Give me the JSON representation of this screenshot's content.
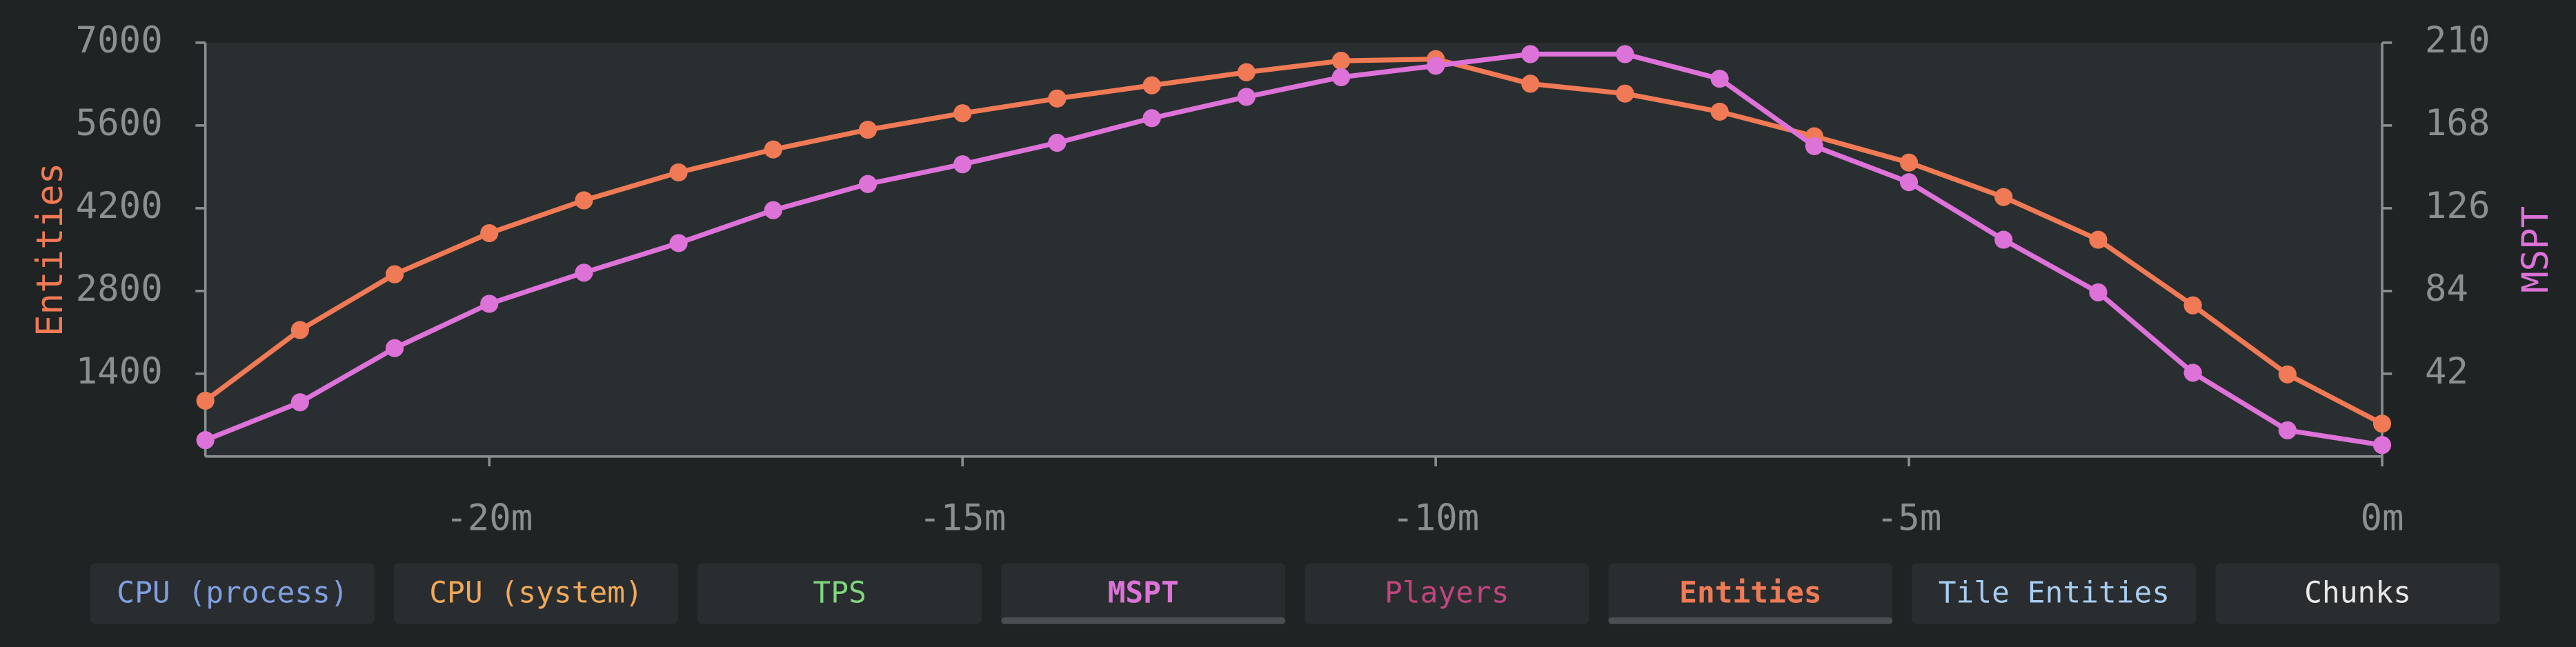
{
  "chart_data": {
    "type": "line",
    "ylabel": "Entities",
    "y2label": "MSPT",
    "x": [
      -23,
      -22,
      -21,
      -20,
      -19,
      -18,
      -17,
      -16,
      -15,
      -14,
      -13,
      -12,
      -11,
      -10,
      -9,
      -8,
      -7,
      -6,
      -5,
      -4,
      -3,
      -2,
      -1,
      0
    ],
    "xlim": [
      -23,
      0
    ],
    "xticks": [
      {
        "value": -20,
        "label": "-20m"
      },
      {
        "value": -15,
        "label": "-15m"
      },
      {
        "value": -10,
        "label": "-10m"
      },
      {
        "value": -5,
        "label": "-5m"
      },
      {
        "value": 0,
        "label": "0m"
      }
    ],
    "ylim": [
      0,
      7000
    ],
    "yticks": [
      1400,
      2800,
      4200,
      5600,
      7000
    ],
    "y2lim": [
      0,
      210
    ],
    "y2ticks": [
      42,
      84,
      126,
      168,
      210
    ],
    "series": [
      {
        "color": "#f07a55",
        "values": [
          944,
          2139,
          3083,
          3778,
          4333,
          4806,
          5194,
          5528,
          5806,
          6056,
          6278,
          6500,
          6694,
          6722,
          6306,
          6139,
          5833,
          5417,
          4972,
          4389,
          3667,
          2556,
          1389,
          556
        ]
      },
      {
        "color": "#dd72d8",
        "axis": "y2",
        "values": [
          8.3,
          27.5,
          55,
          77.5,
          93.3,
          108.3,
          125,
          138.3,
          148.3,
          159.2,
          171.7,
          182.5,
          192.5,
          198.3,
          204.2,
          204.2,
          191.7,
          157.5,
          139.2,
          110,
          83.3,
          42.5,
          13.3,
          5.8
        ]
      }
    ]
  },
  "toggles": [
    {
      "label": "CPU (process)",
      "color": "#7f9fe0",
      "active": false
    },
    {
      "label": "CPU (system)",
      "color": "#f0a85a",
      "active": false
    },
    {
      "label": "TPS",
      "color": "#7fd67f",
      "active": false
    },
    {
      "label": "MSPT",
      "color": "#dd72d8",
      "active": true
    },
    {
      "label": "Players",
      "color": "#c1457f",
      "active": false
    },
    {
      "label": "Entities",
      "color": "#f07a55",
      "active": true
    },
    {
      "label": "Tile Entities",
      "color": "#a7cdf0",
      "active": false
    },
    {
      "label": "Chunks",
      "color": "#e8e8e8",
      "active": false
    }
  ]
}
